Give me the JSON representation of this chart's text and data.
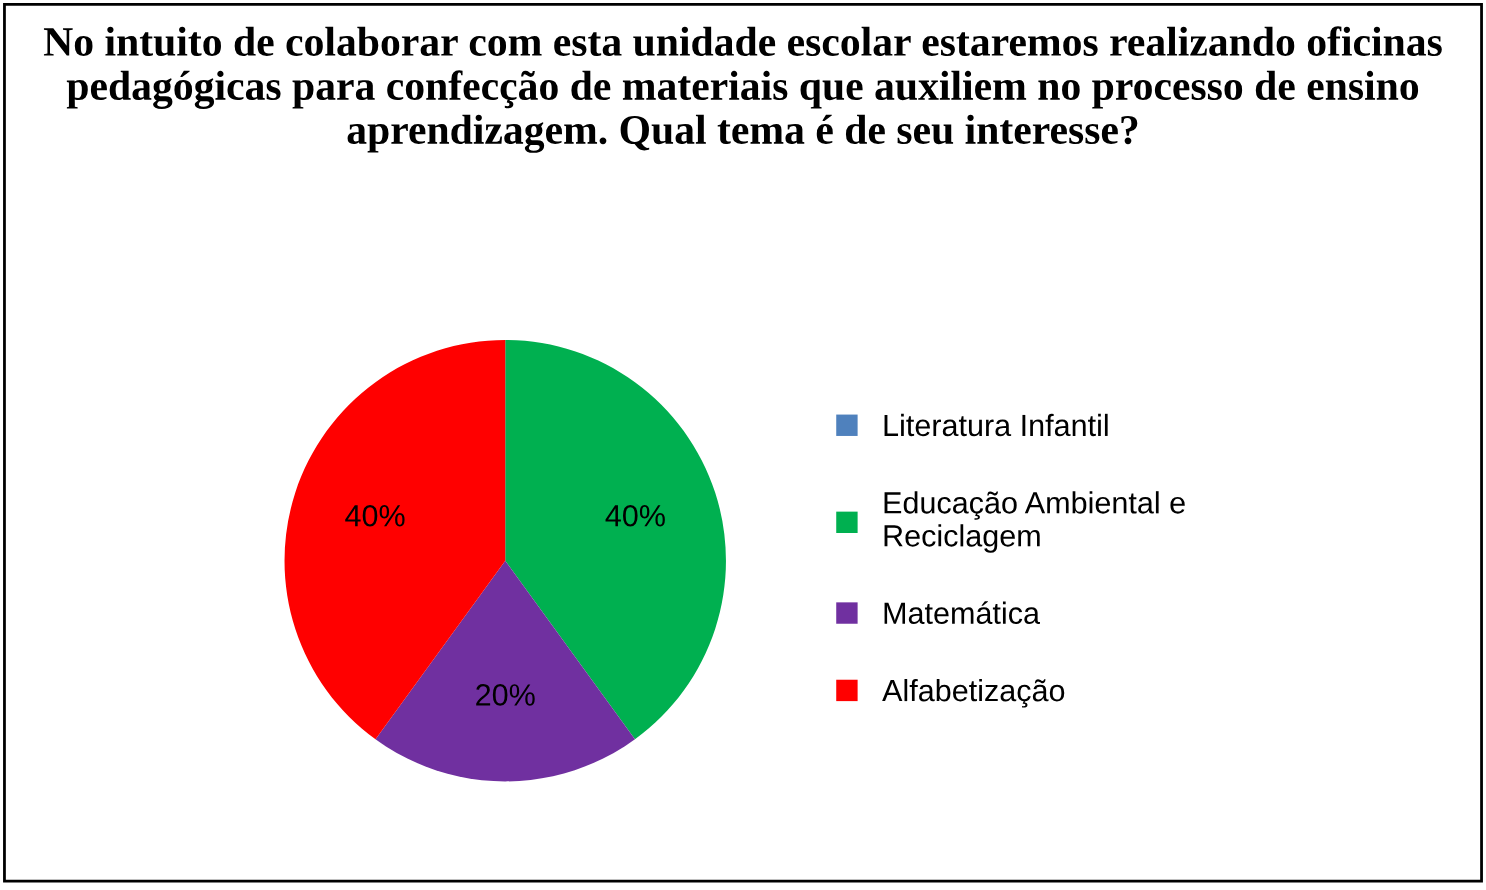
{
  "chart_data": {
    "type": "pie",
    "title": "No intuito de colaborar com esta unidade escolar estaremos realizando oficinas pedagógicas para confecção de materiais que auxiliem no processo de ensino aprendizagem. Qual tema é de seu interesse?",
    "categories": [
      "Literatura Infantil",
      "Educação Ambiental e Reciclagem",
      "Matemática",
      "Alfabetização"
    ],
    "values": [
      0,
      40,
      20,
      40
    ],
    "colors": [
      "#4f81bd",
      "#00b050",
      "#7030a0",
      "#ff0000"
    ],
    "value_labels": [
      null,
      "40%",
      "20%",
      "40%"
    ],
    "legend": "right"
  }
}
